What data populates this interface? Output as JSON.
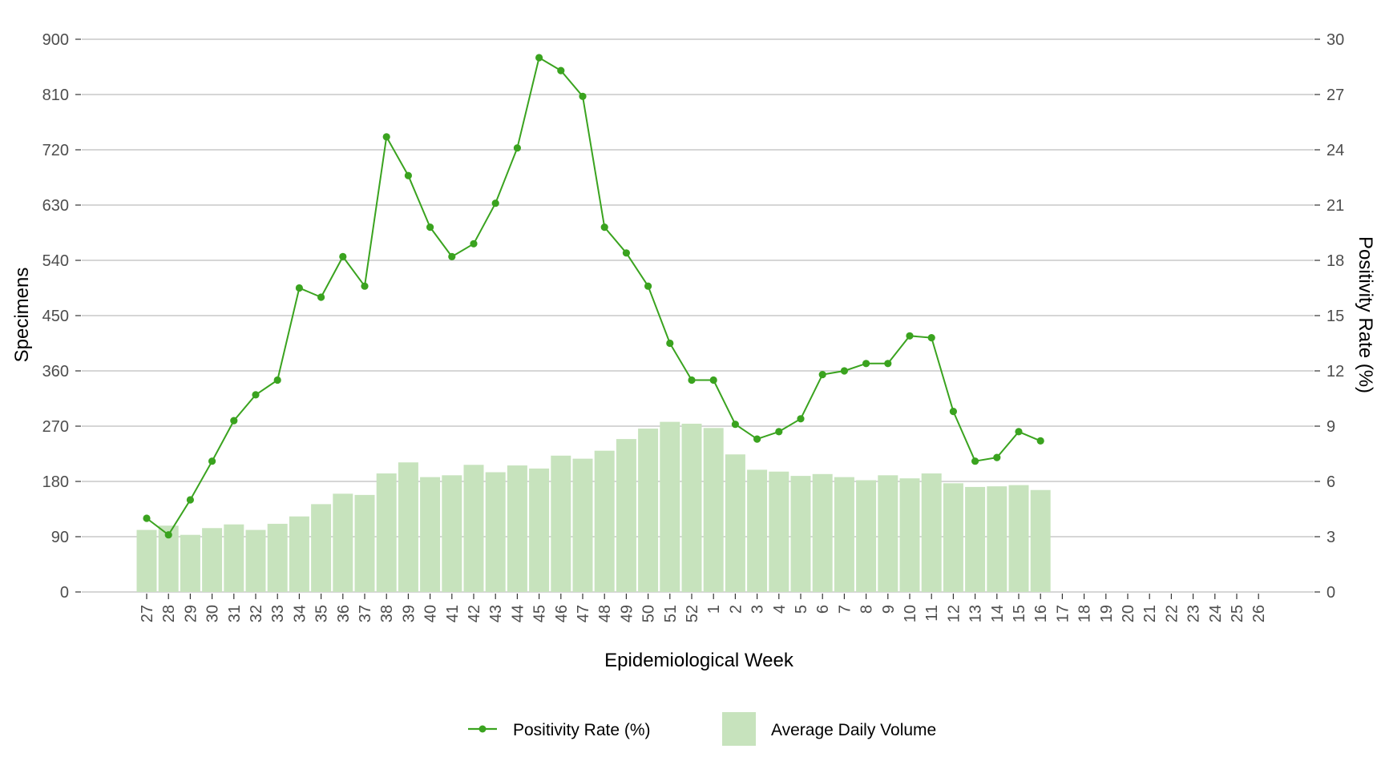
{
  "chart_data": {
    "type": "bar+line",
    "title": "",
    "xlabel": "Epidemiological Week",
    "ylabel_left": "Specimens",
    "ylabel_right": "Positivity Rate (%)",
    "ylim_left": [
      0,
      900
    ],
    "ylim_right": [
      0,
      30
    ],
    "yticks_left": [
      "0",
      "90",
      "180",
      "270",
      "360",
      "450",
      "540",
      "630",
      "720",
      "810",
      "900"
    ],
    "yticks_right": [
      "0",
      "3",
      "6",
      "9",
      "12",
      "15",
      "18",
      "21",
      "24",
      "27",
      "30"
    ],
    "grid": "horizontal",
    "legend_position": "bottom",
    "categories": [
      "27",
      "28",
      "29",
      "30",
      "31",
      "32",
      "33",
      "34",
      "35",
      "36",
      "37",
      "38",
      "39",
      "40",
      "41",
      "42",
      "43",
      "44",
      "45",
      "46",
      "47",
      "48",
      "49",
      "50",
      "51",
      "52",
      "1",
      "2",
      "3",
      "4",
      "5",
      "6",
      "7",
      "8",
      "9",
      "10",
      "11",
      "12",
      "13",
      "14",
      "15",
      "16",
      "17",
      "18",
      "19",
      "20",
      "21",
      "22",
      "23",
      "24",
      "25",
      "26"
    ],
    "series": [
      {
        "name": "Average Daily Volume",
        "type": "bar",
        "axis": "left",
        "color": "#c7e3bd",
        "values": [
          101,
          108,
          93,
          104,
          110,
          101,
          111,
          123,
          143,
          160,
          158,
          193,
          211,
          187,
          190,
          207,
          195,
          206,
          201,
          222,
          217,
          230,
          249,
          266,
          277,
          274,
          267,
          224,
          199,
          196,
          189,
          192,
          187,
          182,
          190,
          185,
          193,
          177,
          171,
          172,
          174,
          166,
          null,
          null,
          null,
          null,
          null,
          null,
          null,
          null,
          null,
          null
        ]
      },
      {
        "name": "Positivity Rate (%)",
        "type": "line",
        "axis": "right",
        "color": "#3aa31f",
        "values": [
          4.0,
          3.1,
          5.0,
          7.1,
          9.3,
          10.7,
          11.5,
          16.5,
          16.0,
          18.2,
          16.6,
          24.7,
          22.6,
          19.8,
          18.2,
          18.9,
          21.1,
          24.1,
          29.0,
          28.3,
          26.9,
          19.8,
          18.4,
          16.6,
          13.5,
          11.5,
          11.5,
          9.1,
          8.3,
          8.7,
          9.4,
          11.8,
          12.0,
          12.4,
          12.4,
          13.9,
          13.8,
          9.8,
          7.1,
          7.3,
          8.7,
          8.2,
          null,
          null,
          null,
          null,
          null,
          null,
          null,
          null,
          null,
          null
        ]
      }
    ]
  }
}
